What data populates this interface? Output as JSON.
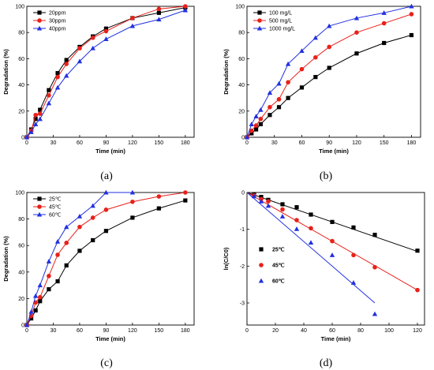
{
  "chart_data": [
    {
      "type": "line",
      "panel_label": "(a)",
      "xlabel": "Time (min)",
      "ylabel": "Degradation (%)",
      "xlim": [
        0,
        190
      ],
      "ylim": [
        0,
        100
      ],
      "xticks": [
        0,
        30,
        60,
        90,
        120,
        150,
        180
      ],
      "yticks": [
        0,
        20,
        40,
        60,
        80,
        100
      ],
      "legend_position": "top-left",
      "series": [
        {
          "name": "20ppm",
          "color": "#000000",
          "marker": "square",
          "x": [
            0,
            5,
            10,
            15,
            25,
            35,
            45,
            60,
            75,
            90,
            120,
            150,
            180
          ],
          "y": [
            0,
            6,
            14,
            21,
            36,
            49,
            59,
            69,
            77,
            83,
            91,
            95,
            99
          ]
        },
        {
          "name": "30ppm",
          "color": "#e8211a",
          "marker": "circle",
          "x": [
            0,
            5,
            10,
            15,
            25,
            35,
            45,
            60,
            75,
            90,
            120,
            150,
            180
          ],
          "y": [
            0,
            5,
            17,
            18,
            32,
            46,
            56,
            68,
            76,
            81,
            91,
            98,
            100
          ]
        },
        {
          "name": "40ppm",
          "color": "#2030e0",
          "marker": "triangle",
          "x": [
            0,
            5,
            10,
            15,
            25,
            35,
            45,
            60,
            75,
            90,
            120,
            150,
            180
          ],
          "y": [
            0,
            4,
            10,
            14,
            26,
            38,
            47,
            58,
            68,
            75,
            85,
            90,
            97
          ]
        }
      ]
    },
    {
      "type": "line",
      "panel_label": "(b)",
      "xlabel": "Time (min)",
      "ylabel": "Degradation (%)",
      "xlim": [
        0,
        190
      ],
      "ylim": [
        0,
        100
      ],
      "xticks": [
        0,
        30,
        60,
        90,
        120,
        150,
        180
      ],
      "yticks": [
        0,
        20,
        40,
        60,
        80,
        100
      ],
      "legend_position": "top-left",
      "series": [
        {
          "name": "100 mg/L",
          "color": "#000000",
          "marker": "square",
          "x": [
            0,
            5,
            10,
            15,
            25,
            35,
            45,
            60,
            75,
            90,
            120,
            150,
            180
          ],
          "y": [
            0,
            3,
            6,
            10,
            17,
            23,
            30,
            38,
            46,
            53,
            64,
            72,
            78
          ]
        },
        {
          "name": "500 mg/L",
          "color": "#e8211a",
          "marker": "circle",
          "x": [
            0,
            5,
            10,
            15,
            25,
            35,
            45,
            60,
            75,
            90,
            120,
            150,
            180
          ],
          "y": [
            0,
            5,
            9,
            14,
            23,
            29,
            42,
            52,
            61,
            69,
            80,
            87,
            94
          ]
        },
        {
          "name": "1000 mg/L",
          "color": "#2030e0",
          "marker": "triangle",
          "x": [
            0,
            5,
            10,
            15,
            25,
            35,
            45,
            60,
            75,
            90,
            120,
            150,
            180
          ],
          "y": [
            0,
            10,
            16,
            21,
            34,
            41,
            56,
            66,
            76,
            85,
            91,
            95,
            100
          ]
        }
      ]
    },
    {
      "type": "line",
      "panel_label": "(c)",
      "xlabel": "Time (min)",
      "ylabel": "Degradation (%)",
      "xlim": [
        0,
        190
      ],
      "ylim": [
        0,
        100
      ],
      "xticks": [
        0,
        30,
        60,
        90,
        120,
        150,
        180
      ],
      "yticks": [
        0,
        20,
        40,
        60,
        80,
        100
      ],
      "legend_position": "top-left",
      "series": [
        {
          "name": "25℃",
          "color": "#000000",
          "marker": "square",
          "x": [
            0,
            5,
            10,
            15,
            25,
            35,
            45,
            60,
            75,
            90,
            120,
            150,
            180
          ],
          "y": [
            0,
            5,
            11,
            18,
            27,
            33,
            45,
            56,
            64,
            71,
            81,
            88,
            94
          ]
        },
        {
          "name": "45℃",
          "color": "#e8211a",
          "marker": "circle",
          "x": [
            0,
            5,
            10,
            15,
            25,
            35,
            45,
            60,
            75,
            90,
            120,
            150,
            180
          ],
          "y": [
            0,
            7,
            17,
            21,
            37,
            53,
            62,
            74,
            81,
            87,
            93,
            97,
            100
          ]
        },
        {
          "name": "60℃",
          "color": "#2030e0",
          "marker": "triangle",
          "x": [
            0,
            5,
            10,
            15,
            25,
            35,
            45,
            60,
            75,
            90,
            120
          ],
          "y": [
            0,
            10,
            22,
            30,
            48,
            63,
            74,
            82,
            90,
            100,
            100
          ]
        }
      ]
    },
    {
      "type": "scatter",
      "panel_label": "(d)",
      "xlabel": "Time (min)",
      "ylabel": "ln(C/C0)",
      "xlim": [
        0,
        125
      ],
      "ylim": [
        -3.6,
        0
      ],
      "xticks": [
        0,
        20,
        40,
        60,
        80,
        100,
        120
      ],
      "yticks": [
        0,
        -1,
        -2,
        -3
      ],
      "legend_position": "middle-left",
      "series": [
        {
          "name": "25℃",
          "color": "#000000",
          "marker": "square",
          "x": [
            5,
            10,
            15,
            25,
            35,
            45,
            60,
            75,
            90,
            120
          ],
          "y": [
            -0.05,
            -0.12,
            -0.2,
            -0.32,
            -0.4,
            -0.6,
            -0.8,
            -0.95,
            -1.15,
            -1.58
          ],
          "fit": [
            [
              0,
              0
            ],
            [
              120,
              -1.6
            ]
          ]
        },
        {
          "name": "45℃",
          "color": "#e8211a",
          "marker": "circle",
          "x": [
            5,
            10,
            15,
            25,
            35,
            45,
            60,
            75,
            90,
            120
          ],
          "y": [
            -0.08,
            -0.18,
            -0.24,
            -0.46,
            -0.75,
            -0.97,
            -1.32,
            -1.7,
            -2.03,
            -2.65
          ],
          "fit": [
            [
              0,
              0
            ],
            [
              120,
              -2.65
            ]
          ]
        },
        {
          "name": "60℃",
          "color": "#2030e0",
          "marker": "triangle",
          "x": [
            5,
            10,
            15,
            25,
            35,
            45,
            60,
            75,
            90
          ],
          "y": [
            -0.1,
            -0.24,
            -0.36,
            -0.65,
            -0.99,
            -1.36,
            -1.7,
            -2.45,
            -3.3
          ],
          "fit": [
            [
              0,
              0
            ],
            [
              90,
              -3.0
            ]
          ]
        }
      ]
    }
  ]
}
